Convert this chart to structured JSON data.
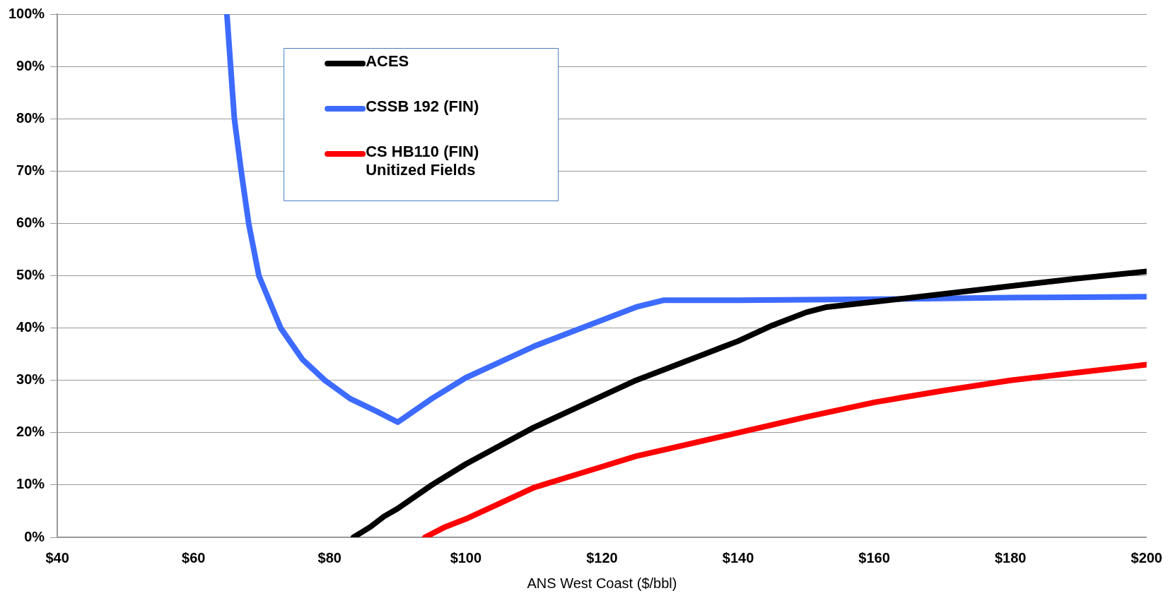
{
  "chart_data": {
    "type": "line",
    "xlabel": "ANS West Coast ($/bbl)",
    "xlim": [
      40,
      200
    ],
    "ylim": [
      0,
      100
    ],
    "xticks": [
      {
        "value": 40,
        "label": "$40"
      },
      {
        "value": 60,
        "label": "$60"
      },
      {
        "value": 80,
        "label": "$80"
      },
      {
        "value": 100,
        "label": "$100"
      },
      {
        "value": 120,
        "label": "$120"
      },
      {
        "value": 140,
        "label": "$140"
      },
      {
        "value": 160,
        "label": "$160"
      },
      {
        "value": 180,
        "label": "$180"
      },
      {
        "value": 200,
        "label": "$200"
      }
    ],
    "yticks": [
      {
        "value": 0,
        "label": "0%"
      },
      {
        "value": 10,
        "label": "10%"
      },
      {
        "value": 20,
        "label": "20%"
      },
      {
        "value": 30,
        "label": "30%"
      },
      {
        "value": 40,
        "label": "40%"
      },
      {
        "value": 50,
        "label": "50%"
      },
      {
        "value": 60,
        "label": "60%"
      },
      {
        "value": 70,
        "label": "70%"
      },
      {
        "value": 80,
        "label": "80%"
      },
      {
        "value": 90,
        "label": "90%"
      },
      {
        "value": 100,
        "label": "100%"
      }
    ],
    "grid": "y",
    "legend": "top left",
    "marker": "none",
    "line_style": "solid",
    "series": [
      {
        "name": "ACES",
        "color": "#000000",
        "x": [
          83.5,
          86,
          88,
          90,
          95,
          100,
          105,
          110,
          115,
          120,
          125,
          130,
          135,
          140,
          145,
          150,
          153,
          160,
          170,
          180,
          190,
          200
        ],
        "values": [
          0,
          2,
          4,
          5.5,
          10,
          14,
          17.5,
          21,
          24,
          27,
          30,
          32.5,
          35,
          37.5,
          40.5,
          43,
          44,
          45,
          46.5,
          48,
          49.5,
          50.8
        ]
      },
      {
        "name": "CSSB 192 (FIN)",
        "color": "#3d6bff",
        "x": [
          64.9,
          66,
          67,
          68.1,
          69.6,
          72.8,
          76,
          79.3,
          83,
          87,
          90,
          95,
          100,
          105,
          110,
          115,
          120,
          125,
          129,
          140,
          160,
          180,
          200
        ],
        "values": [
          100,
          80,
          70,
          60,
          50,
          40,
          34,
          30,
          26.5,
          24,
          22,
          26.5,
          30.5,
          33.5,
          36.5,
          39,
          41.5,
          44,
          45.3,
          45.3,
          45.5,
          45.8,
          46
        ]
      },
      {
        "name": "CS HB110 (FIN) Unitized Fields",
        "color": "#ff0000",
        "x": [
          94,
          97,
          100,
          105,
          110,
          115,
          120,
          125,
          130,
          140,
          150,
          160,
          170,
          180,
          190,
          200
        ],
        "values": [
          0,
          2,
          3.5,
          6.5,
          9.5,
          11.5,
          13.5,
          15.5,
          17,
          20,
          23,
          25.8,
          28,
          30,
          31.5,
          33
        ]
      }
    ]
  }
}
